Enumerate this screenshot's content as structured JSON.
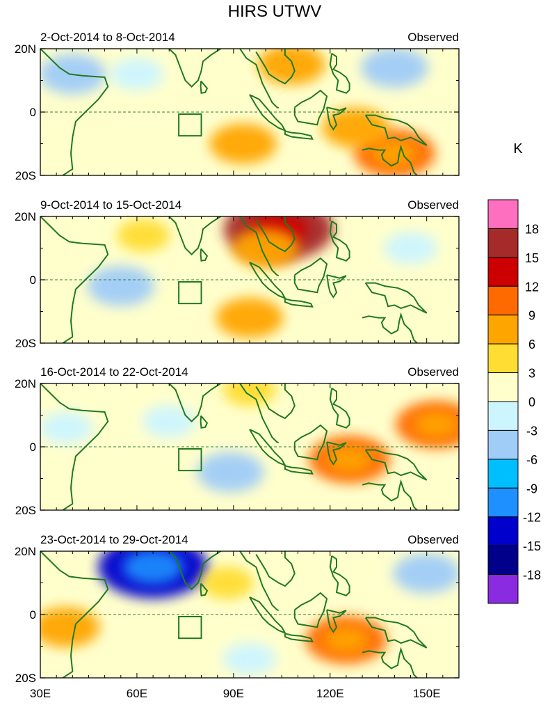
{
  "chart_data": {
    "type": "heatmap",
    "title": "HIRS UTWV",
    "units": "K",
    "x_ticks": [
      "30E",
      "60E",
      "90E",
      "120E",
      "150E"
    ],
    "y_ticks": [
      "20N",
      "0",
      "20S"
    ],
    "xlim": [
      30,
      160
    ],
    "ylim": [
      -20,
      20
    ],
    "colorbar": {
      "levels": [
        "18",
        "15",
        "12",
        "9",
        "6",
        "3",
        "0",
        "-3",
        "-6",
        "-9",
        "-12",
        "-15",
        "-18"
      ],
      "colors": [
        "#ff6fc0",
        "#a52a2a",
        "#cc0000",
        "#ff6a00",
        "#ffa500",
        "#ffdd33",
        "#ffffcc",
        "#cdf5ff",
        "#a0ccf8",
        "#00bfff",
        "#1e90ff",
        "#0000cd",
        "#00008b",
        "#8a2be2"
      ]
    },
    "panels": [
      {
        "period": "2-Oct-2014 to 8-Oct-2014",
        "label": "Observed",
        "features": [
          {
            "lon": 40,
            "lat": 12,
            "value": -6
          },
          {
            "lon": 60,
            "lat": 12,
            "value": -3
          },
          {
            "lon": 93,
            "lat": -10,
            "value": 6
          },
          {
            "lon": 108,
            "lat": 15,
            "value": 6
          },
          {
            "lon": 140,
            "lat": 14,
            "value": -6
          },
          {
            "lon": 140,
            "lat": -13,
            "value": 9
          },
          {
            "lon": 128,
            "lat": -5,
            "value": 6
          }
        ]
      },
      {
        "period": "9-Oct-2014 to 15-Oct-2014",
        "label": "Observed",
        "features": [
          {
            "lon": 104,
            "lat": 16,
            "value": 15
          },
          {
            "lon": 100,
            "lat": 10,
            "value": 6
          },
          {
            "lon": 95,
            "lat": -12,
            "value": 6
          },
          {
            "lon": 55,
            "lat": -2,
            "value": -6
          },
          {
            "lon": 62,
            "lat": 14,
            "value": 3
          },
          {
            "lon": 145,
            "lat": 10,
            "value": -3
          }
        ]
      },
      {
        "period": "16-Oct-2014 to 22-Oct-2014",
        "label": "Observed",
        "features": [
          {
            "lon": 126,
            "lat": -4,
            "value": 9
          },
          {
            "lon": 153,
            "lat": 7,
            "value": 9
          },
          {
            "lon": 89,
            "lat": -8,
            "value": -6
          },
          {
            "lon": 70,
            "lat": 8,
            "value": -3
          },
          {
            "lon": 95,
            "lat": 18,
            "value": 3
          },
          {
            "lon": 38,
            "lat": 6,
            "value": -3
          }
        ]
      },
      {
        "period": "23-Oct-2014 to 29-Oct-2014",
        "label": "Observed",
        "features": [
          {
            "lon": 65,
            "lat": 15,
            "value": -15
          },
          {
            "lon": 125,
            "lat": -8,
            "value": 9
          },
          {
            "lon": 150,
            "lat": 13,
            "value": -6
          },
          {
            "lon": 38,
            "lat": -4,
            "value": 6
          },
          {
            "lon": 88,
            "lat": 10,
            "value": 3
          },
          {
            "lon": 95,
            "lat": -14,
            "value": -3
          }
        ]
      }
    ]
  }
}
